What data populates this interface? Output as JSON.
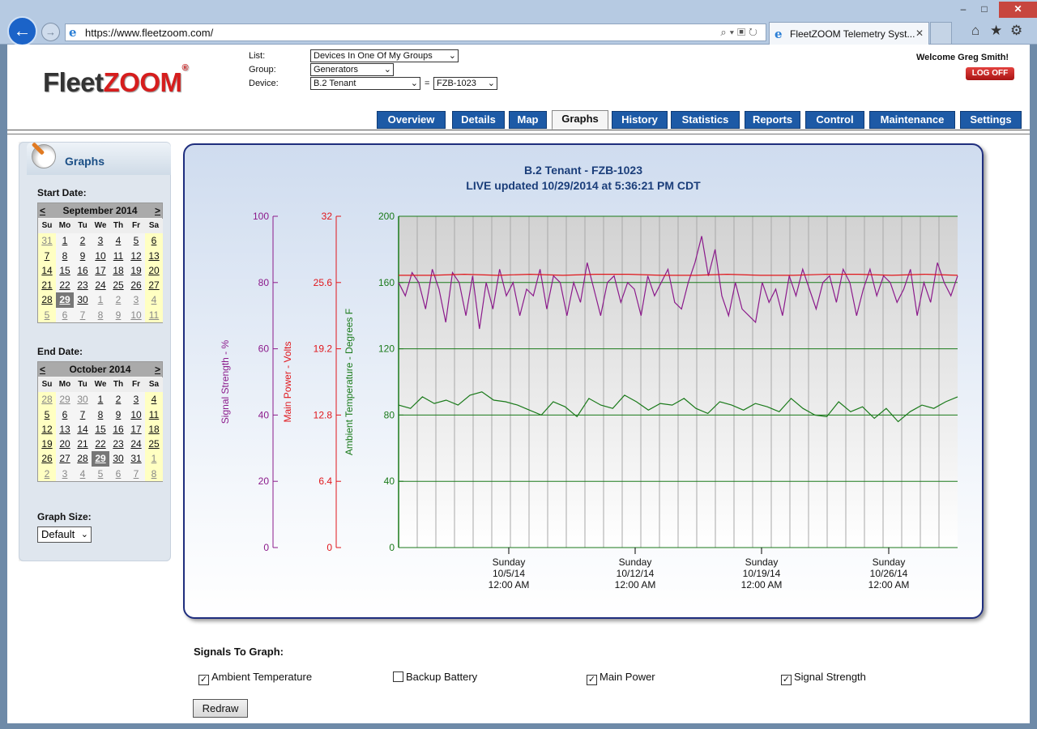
{
  "browser": {
    "url": "https://www.fleetzoom.com/",
    "tab_title": "FleetZOOM Telemetry Syst...",
    "window_min": "–",
    "window_max": "□",
    "window_close": "✕",
    "back_glyph": "←",
    "forward_glyph": "→",
    "addr_icons": "⌕▾▣↻",
    "tab_close": "✕",
    "home_icon": "⌂",
    "fav_icon": "★",
    "tools_icon": "⚙"
  },
  "header": {
    "logo_fleet": "Fleet",
    "logo_zoom": "ZOOM",
    "logo_reg": "®",
    "list_label": "List:",
    "list_value": "Devices In One Of My Groups",
    "group_label": "Group:",
    "group_value": "Generators",
    "device_label": "Device:",
    "device_value": "B.2 Tenant",
    "device_eq": "=",
    "device_id_value": "FZB-1023",
    "dropdown_arrow": "⌄",
    "welcome": "Welcome Greg Smith!",
    "logoff": "LOG OFF"
  },
  "nav_tabs": [
    "Overview",
    "Details",
    "Map",
    "Graphs",
    "History",
    "Statistics",
    "Reports",
    "Control",
    "Maintenance",
    "Settings"
  ],
  "active_tab": "Graphs",
  "sidebar": {
    "title": "Graphs",
    "start_label": "Start Date:",
    "end_label": "End Date:",
    "prev": "<",
    "next": ">",
    "dow": [
      "Su",
      "Mo",
      "Tu",
      "We",
      "Th",
      "Fr",
      "Sa"
    ],
    "start_cal": {
      "month": "September 2014",
      "days": [
        "31",
        "1",
        "2",
        "3",
        "4",
        "5",
        "6",
        "7",
        "8",
        "9",
        "10",
        "11",
        "12",
        "13",
        "14",
        "15",
        "16",
        "17",
        "18",
        "19",
        "20",
        "21",
        "22",
        "23",
        "24",
        "25",
        "26",
        "27",
        "28",
        "29",
        "30",
        "1",
        "2",
        "3",
        "4",
        "5",
        "6",
        "7",
        "8",
        "9",
        "10",
        "11"
      ],
      "selected": "29",
      "other_month_leading": 1,
      "other_month_trailing_from": 31
    },
    "end_cal": {
      "month": "October 2014",
      "days": [
        "28",
        "29",
        "30",
        "1",
        "2",
        "3",
        "4",
        "5",
        "6",
        "7",
        "8",
        "9",
        "10",
        "11",
        "12",
        "13",
        "14",
        "15",
        "16",
        "17",
        "18",
        "19",
        "20",
        "21",
        "22",
        "23",
        "24",
        "25",
        "26",
        "27",
        "28",
        "29",
        "30",
        "31",
        "1",
        "2",
        "3",
        "4",
        "5",
        "6",
        "7",
        "8"
      ],
      "selected": "29",
      "other_month_leading": 3,
      "other_month_trailing_from": 34
    },
    "graph_size_label": "Graph Size:",
    "graph_size_value": "Default"
  },
  "graph": {
    "title": "B.2 Tenant - FZB-1023",
    "subtitle": "LIVE updated 10/29/2014 at 5:36:21 PM CDT"
  },
  "chart_data": {
    "type": "line",
    "title": "B.2 Tenant - FZB-1023",
    "subtitle": "LIVE updated 10/29/2014 at 5:36:21 PM CDT",
    "x_ticks": [
      {
        "label": [
          "Sunday",
          "10/5/14",
          "12:00 AM"
        ]
      },
      {
        "label": [
          "Sunday",
          "10/12/14",
          "12:00 AM"
        ]
      },
      {
        "label": [
          "Sunday",
          "10/19/14",
          "12:00 AM"
        ]
      },
      {
        "label": [
          "Sunday",
          "10/26/14",
          "12:00 AM"
        ]
      }
    ],
    "x_range": [
      "9/29/14 12:00 AM",
      "10/29/14 5:36 PM"
    ],
    "axes": [
      {
        "id": "signal",
        "label": "Signal Strength - %",
        "color": "#8b1a8b",
        "range": [
          0,
          100
        ],
        "ticks": [
          "100",
          "80",
          "60",
          "40",
          "20",
          "0"
        ]
      },
      {
        "id": "power",
        "label": "Main Power - Volts",
        "color": "#e0161b",
        "range": [
          0,
          32
        ],
        "ticks": [
          "32",
          "25.6",
          "19.2",
          "12.8",
          "6.4",
          "0"
        ]
      },
      {
        "id": "temp",
        "label": "Ambient Temperature - Degrees F",
        "color": "#1a7a1a",
        "range": [
          0,
          200
        ],
        "ticks": [
          "200",
          "160",
          "120",
          "80",
          "40",
          "0"
        ]
      }
    ],
    "series": [
      {
        "name": "Signal Strength",
        "axis": "signal",
        "color": "#8b1a8b",
        "values": [
          80,
          76,
          83,
          80,
          72,
          84,
          78,
          68,
          83,
          80,
          70,
          82,
          66,
          80,
          72,
          84,
          76,
          80,
          70,
          78,
          76,
          84,
          72,
          82,
          80,
          70,
          80,
          74,
          86,
          78,
          70,
          80,
          82,
          74,
          80,
          78,
          70,
          82,
          76,
          80,
          84,
          74,
          72,
          80,
          86,
          94,
          82,
          90,
          76,
          70,
          80,
          72,
          70,
          68,
          80,
          74,
          78,
          70,
          82,
          76,
          84,
          78,
          72,
          80,
          82,
          74,
          84,
          80,
          70,
          78,
          84,
          76,
          82,
          80,
          74,
          78,
          84,
          70,
          80,
          74,
          86,
          80,
          76,
          82
        ]
      },
      {
        "name": "Main Power",
        "axis": "power",
        "color": "#e0161b",
        "values": [
          26.3,
          26.3,
          26.4,
          26.3,
          26.4,
          26.3,
          26.4,
          26.4,
          26.3,
          26.3,
          26.4,
          26.3,
          26.3,
          26.4,
          26.4,
          26.3,
          26.4,
          26.3
        ]
      },
      {
        "name": "Ambient Temperature",
        "axis": "temp",
        "color": "#1a7a1a",
        "values": [
          86,
          84,
          91,
          87,
          89,
          86,
          92,
          94,
          89,
          88,
          86,
          83,
          80,
          88,
          85,
          79,
          90,
          86,
          84,
          92,
          88,
          83,
          87,
          86,
          90,
          84,
          81,
          88,
          86,
          83,
          87,
          85,
          82,
          90,
          84,
          80,
          79,
          88,
          82,
          85,
          78,
          84,
          76,
          82,
          86,
          84,
          88,
          91
        ]
      }
    ],
    "grid": true,
    "legend": "none"
  },
  "signals": {
    "heading": "Signals To Graph:",
    "items": [
      {
        "label": "Ambient Temperature",
        "checked": true
      },
      {
        "label": "Backup Battery",
        "checked": false
      },
      {
        "label": "Main Power",
        "checked": true
      },
      {
        "label": "Signal Strength",
        "checked": true
      }
    ],
    "check_glyph": "✓",
    "redraw": "Redraw"
  }
}
